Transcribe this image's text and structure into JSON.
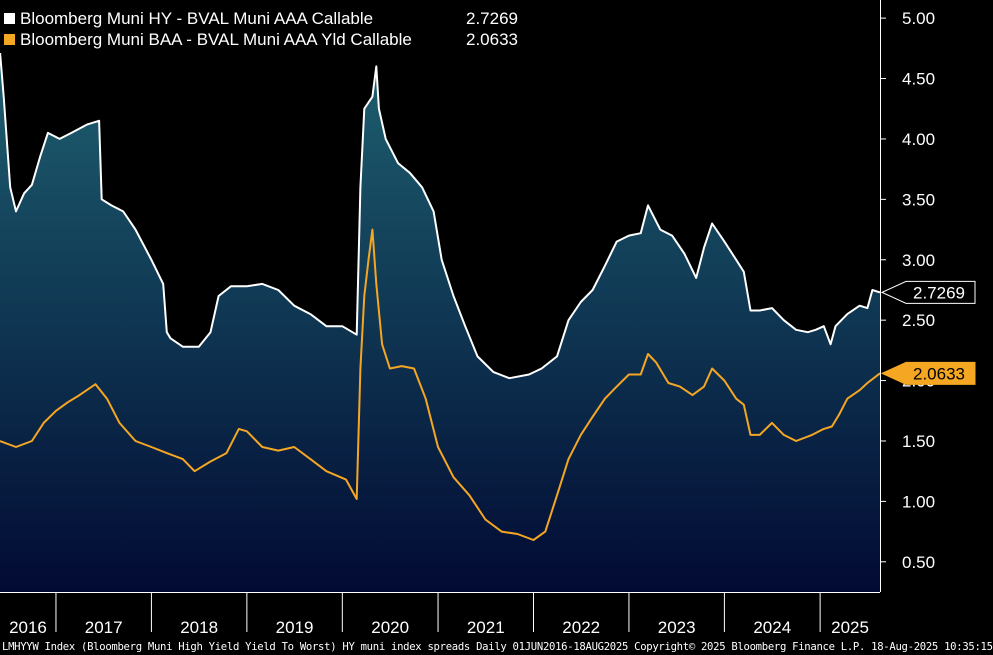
{
  "chart_data": {
    "type": "area",
    "title": "",
    "xlabel": "",
    "ylabel": "",
    "ylim": [
      0.25,
      5.15
    ],
    "y_ticks": [
      0.5,
      1.0,
      1.5,
      2.0,
      2.5,
      3.0,
      3.5,
      4.0,
      4.5,
      5.0
    ],
    "y_tick_labels": [
      "0.50",
      "1.00",
      "1.50",
      "2.00",
      "2.50",
      "3.00",
      "3.50",
      "4.00",
      "4.50",
      "5.00"
    ],
    "x_tick_labels": [
      "2016",
      "2017",
      "2018",
      "2019",
      "2020",
      "2021",
      "2022",
      "2023",
      "2024",
      "2025"
    ],
    "x_range": [
      "2016-06-01",
      "2025-08-18"
    ],
    "grid": false,
    "legend_position": "top-left",
    "series": [
      {
        "name": "Bloomberg Muni HY - BVAL Muni AAA Callable",
        "last_value": "2.7269",
        "color": "#ffffff",
        "fill": "gradient-teal-to-navy",
        "points": [
          [
            "2016-06-01",
            4.72
          ],
          [
            "2016-06-15",
            4.35
          ],
          [
            "2016-07-10",
            3.6
          ],
          [
            "2016-08-01",
            3.4
          ],
          [
            "2016-09-01",
            3.55
          ],
          [
            "2016-10-01",
            3.62
          ],
          [
            "2016-11-01",
            3.85
          ],
          [
            "2016-12-01",
            4.05
          ],
          [
            "2017-01-15",
            4.0
          ],
          [
            "2017-03-01",
            4.05
          ],
          [
            "2017-05-01",
            4.12
          ],
          [
            "2017-06-15",
            4.15
          ],
          [
            "2017-06-25",
            3.5
          ],
          [
            "2017-08-01",
            3.45
          ],
          [
            "2017-09-15",
            3.4
          ],
          [
            "2017-11-01",
            3.25
          ],
          [
            "2018-01-01",
            3.0
          ],
          [
            "2018-02-15",
            2.8
          ],
          [
            "2018-03-01",
            2.4
          ],
          [
            "2018-03-15",
            2.35
          ],
          [
            "2018-05-01",
            2.28
          ],
          [
            "2018-07-01",
            2.28
          ],
          [
            "2018-08-15",
            2.4
          ],
          [
            "2018-09-15",
            2.7
          ],
          [
            "2018-11-01",
            2.78
          ],
          [
            "2019-01-01",
            2.78
          ],
          [
            "2019-03-01",
            2.8
          ],
          [
            "2019-05-01",
            2.75
          ],
          [
            "2019-07-01",
            2.62
          ],
          [
            "2019-09-01",
            2.55
          ],
          [
            "2019-11-01",
            2.45
          ],
          [
            "2020-01-01",
            2.45
          ],
          [
            "2020-02-25",
            2.38
          ],
          [
            "2020-03-10",
            3.6
          ],
          [
            "2020-03-25",
            4.25
          ],
          [
            "2020-04-25",
            4.35
          ],
          [
            "2020-05-10",
            4.6
          ],
          [
            "2020-05-20",
            4.25
          ],
          [
            "2020-06-15",
            4.0
          ],
          [
            "2020-08-01",
            3.8
          ],
          [
            "2020-09-15",
            3.72
          ],
          [
            "2020-11-01",
            3.6
          ],
          [
            "2020-12-15",
            3.4
          ],
          [
            "2021-01-15",
            3.0
          ],
          [
            "2021-03-01",
            2.7
          ],
          [
            "2021-04-15",
            2.45
          ],
          [
            "2021-06-01",
            2.2
          ],
          [
            "2021-08-01",
            2.07
          ],
          [
            "2021-10-01",
            2.02
          ],
          [
            "2021-12-15",
            2.05
          ],
          [
            "2022-02-01",
            2.1
          ],
          [
            "2022-04-01",
            2.2
          ],
          [
            "2022-05-15",
            2.5
          ],
          [
            "2022-07-01",
            2.65
          ],
          [
            "2022-08-15",
            2.75
          ],
          [
            "2022-10-01",
            2.95
          ],
          [
            "2022-11-15",
            3.15
          ],
          [
            "2023-01-01",
            3.2
          ],
          [
            "2023-02-15",
            3.22
          ],
          [
            "2023-03-15",
            3.45
          ],
          [
            "2023-05-01",
            3.25
          ],
          [
            "2023-06-15",
            3.2
          ],
          [
            "2023-08-01",
            3.05
          ],
          [
            "2023-09-15",
            2.85
          ],
          [
            "2023-10-15",
            3.1
          ],
          [
            "2023-11-15",
            3.3
          ],
          [
            "2024-01-01",
            3.15
          ],
          [
            "2024-02-15",
            3.0
          ],
          [
            "2024-03-15",
            2.9
          ],
          [
            "2024-04-10",
            2.58
          ],
          [
            "2024-05-15",
            2.58
          ],
          [
            "2024-07-01",
            2.6
          ],
          [
            "2024-08-15",
            2.5
          ],
          [
            "2024-10-01",
            2.42
          ],
          [
            "2024-11-15",
            2.4
          ],
          [
            "2024-12-15",
            2.42
          ],
          [
            "2025-01-15",
            2.45
          ],
          [
            "2025-02-10",
            2.3
          ],
          [
            "2025-03-01",
            2.45
          ],
          [
            "2025-04-15",
            2.55
          ],
          [
            "2025-06-01",
            2.62
          ],
          [
            "2025-07-01",
            2.6
          ],
          [
            "2025-07-20",
            2.75
          ],
          [
            "2025-08-18",
            2.73
          ]
        ]
      },
      {
        "name": "Bloomberg Muni BAA - BVAL Muni AAA Yld Callable",
        "last_value": "2.0633",
        "color": "#f5a623",
        "points": [
          [
            "2016-06-01",
            1.5
          ],
          [
            "2016-08-01",
            1.45
          ],
          [
            "2016-10-01",
            1.5
          ],
          [
            "2016-11-15",
            1.65
          ],
          [
            "2017-01-01",
            1.75
          ],
          [
            "2017-02-15",
            1.82
          ],
          [
            "2017-04-01",
            1.88
          ],
          [
            "2017-06-01",
            1.97
          ],
          [
            "2017-07-15",
            1.85
          ],
          [
            "2017-09-01",
            1.65
          ],
          [
            "2017-11-01",
            1.5
          ],
          [
            "2018-01-01",
            1.45
          ],
          [
            "2018-03-01",
            1.4
          ],
          [
            "2018-05-01",
            1.35
          ],
          [
            "2018-06-15",
            1.25
          ],
          [
            "2018-08-15",
            1.33
          ],
          [
            "2018-10-15",
            1.4
          ],
          [
            "2018-12-01",
            1.6
          ],
          [
            "2019-01-01",
            1.58
          ],
          [
            "2019-03-01",
            1.45
          ],
          [
            "2019-05-01",
            1.42
          ],
          [
            "2019-07-01",
            1.45
          ],
          [
            "2019-09-01",
            1.35
          ],
          [
            "2019-11-01",
            1.25
          ],
          [
            "2020-01-15",
            1.18
          ],
          [
            "2020-02-25",
            1.02
          ],
          [
            "2020-03-10",
            2.1
          ],
          [
            "2020-03-25",
            2.7
          ],
          [
            "2020-04-10",
            3.0
          ],
          [
            "2020-04-25",
            3.25
          ],
          [
            "2020-05-10",
            2.8
          ],
          [
            "2020-06-01",
            2.3
          ],
          [
            "2020-07-01",
            2.1
          ],
          [
            "2020-08-15",
            2.12
          ],
          [
            "2020-10-01",
            2.1
          ],
          [
            "2020-11-15",
            1.85
          ],
          [
            "2021-01-01",
            1.45
          ],
          [
            "2021-03-01",
            1.2
          ],
          [
            "2021-05-01",
            1.05
          ],
          [
            "2021-07-01",
            0.85
          ],
          [
            "2021-09-01",
            0.75
          ],
          [
            "2021-11-01",
            0.73
          ],
          [
            "2022-01-01",
            0.68
          ],
          [
            "2022-02-15",
            0.75
          ],
          [
            "2022-04-01",
            1.05
          ],
          [
            "2022-05-15",
            1.35
          ],
          [
            "2022-07-01",
            1.55
          ],
          [
            "2022-08-15",
            1.7
          ],
          [
            "2022-10-01",
            1.85
          ],
          [
            "2022-11-15",
            1.95
          ],
          [
            "2023-01-01",
            2.05
          ],
          [
            "2023-02-15",
            2.05
          ],
          [
            "2023-03-15",
            2.22
          ],
          [
            "2023-04-15",
            2.15
          ],
          [
            "2023-06-01",
            1.98
          ],
          [
            "2023-07-15",
            1.95
          ],
          [
            "2023-09-01",
            1.88
          ],
          [
            "2023-10-15",
            1.95
          ],
          [
            "2023-11-15",
            2.1
          ],
          [
            "2024-01-01",
            2.0
          ],
          [
            "2024-02-15",
            1.85
          ],
          [
            "2024-03-15",
            1.8
          ],
          [
            "2024-04-10",
            1.55
          ],
          [
            "2024-05-15",
            1.55
          ],
          [
            "2024-07-01",
            1.65
          ],
          [
            "2024-08-15",
            1.55
          ],
          [
            "2024-10-01",
            1.5
          ],
          [
            "2024-12-01",
            1.55
          ],
          [
            "2025-01-15",
            1.6
          ],
          [
            "2025-02-15",
            1.62
          ],
          [
            "2025-03-15",
            1.72
          ],
          [
            "2025-04-15",
            1.85
          ],
          [
            "2025-06-01",
            1.92
          ],
          [
            "2025-07-01",
            1.98
          ],
          [
            "2025-08-18",
            2.06
          ]
        ]
      }
    ]
  },
  "footer_text": "LMHYYW Index (Bloomberg Muni High Yield Yield To Worst) HY muni index spreads  Daily 01JUN2016-18AUG2025 Copyright© 2025 Bloomberg Finance L.P. 18-Aug-2025 10:35:15"
}
